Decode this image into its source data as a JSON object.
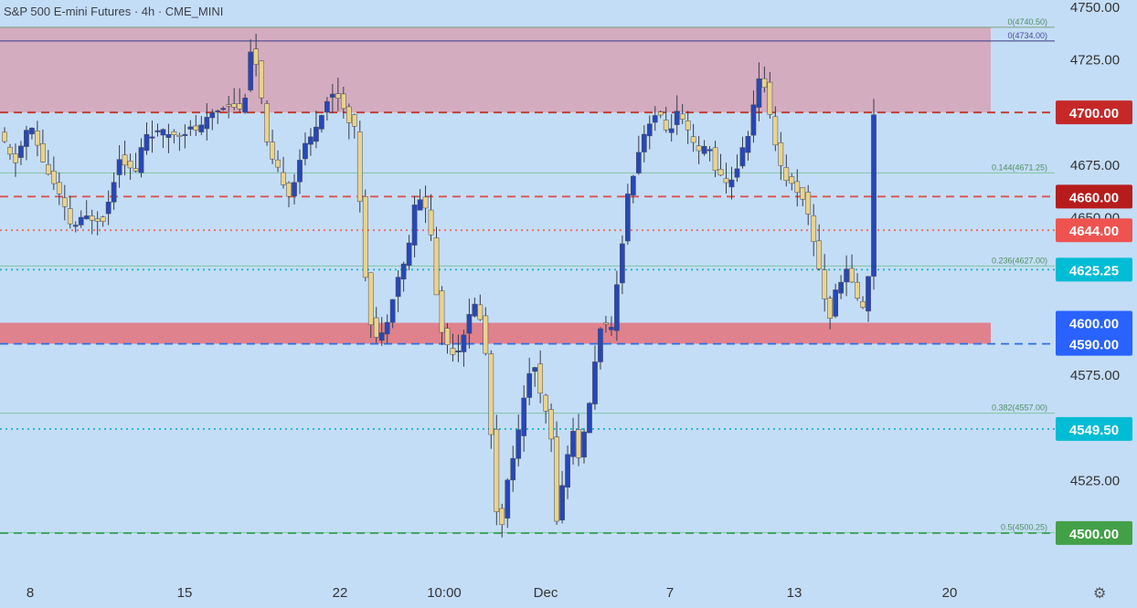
{
  "header": {
    "title": "S&P 500 E-mini Futures · 4h · CME_MINI"
  },
  "colors": {
    "background": "#c4ddf7",
    "bull_body": "#2747b8",
    "bear_body": "#e9d38c",
    "wick": "#383c49",
    "resistance_zone": "#d5a9bd",
    "support_zone": "#e07c88"
  },
  "chart_data": {
    "type": "candlestick",
    "title": "S&P 500 E-mini Futures",
    "interval": "4h",
    "exchange": "CME_MINI",
    "ylim": [
      4480,
      4750
    ],
    "y_ticks": [
      "4750.00",
      "4725.00",
      "4675.00",
      "4650.00",
      "4575.00",
      "4525.00"
    ],
    "x_ticks": [
      "8",
      "15",
      "22",
      "10:00",
      "Dec",
      "7",
      "13",
      "20"
    ],
    "grid": false,
    "zones": [
      {
        "from": 4700,
        "to": 4740.5,
        "color": "#d5a9bd"
      },
      {
        "from": 4590,
        "to": 4600,
        "color": "#e07c88"
      }
    ],
    "levels": [
      {
        "value": 4734,
        "label": "0(4734.00)",
        "color": "#3b3a86",
        "style": "solid"
      },
      {
        "value": 4740.5,
        "label": "0(4740.50)",
        "color": "#7aa27a",
        "style": "solid"
      },
      {
        "value": 4700,
        "price_label": "4700.00",
        "color": "#c0392b",
        "style": "dashed"
      },
      {
        "value": 4671.25,
        "label": "0.144(4671.25)",
        "color": "#7dc69f",
        "style": "solid"
      },
      {
        "value": 4660,
        "price_label": "4660.00",
        "color": "#d9534f",
        "style": "dashed"
      },
      {
        "value": 4644,
        "price_label": "4644.00",
        "color": "#ef6b5b",
        "style": "dotted"
      },
      {
        "value": 4627,
        "label": "0.236(4627.00)",
        "color": "#7dc69f",
        "style": "solid"
      },
      {
        "value": 4625.25,
        "price_label": "4625.25",
        "color": "#17b3c6",
        "style": "dotted"
      },
      {
        "value": 4600,
        "price_label": "4600.00",
        "color": "#2563eb",
        "style": "none"
      },
      {
        "value": 4590,
        "price_label": "4590.00",
        "color": "#2f6fe6",
        "style": "dashed"
      },
      {
        "value": 4557,
        "label": "0.382(4557.00)",
        "color": "#7dc69f",
        "style": "solid"
      },
      {
        "value": 4549.5,
        "price_label": "4549.50",
        "color": "#17b3c6",
        "style": "dotted"
      },
      {
        "value": 4500.25,
        "label": "0.5(4500.25)",
        "color": "#7dc69f",
        "style": "solid"
      },
      {
        "value": 4500,
        "price_label": "4500.00",
        "color": "#3aa35a",
        "style": "dashed"
      }
    ],
    "path": [
      [
        0,
        4690
      ],
      [
        0.06,
        4675
      ],
      [
        0.12,
        4695
      ],
      [
        0.18,
        4675
      ],
      [
        0.24,
        4660
      ],
      [
        0.29,
        4645
      ],
      [
        0.34,
        4650
      ],
      [
        0.42,
        4650
      ],
      [
        0.48,
        4680
      ],
      [
        0.54,
        4670
      ],
      [
        0.58,
        4690
      ],
      [
        0.64,
        4690
      ],
      [
        0.7,
        4690
      ],
      [
        0.76,
        4692
      ],
      [
        0.8,
        4692
      ],
      [
        0.85,
        4700
      ],
      [
        0.92,
        4705
      ],
      [
        0.97,
        4700
      ],
      [
        1.0,
        4730
      ],
      [
        1.03,
        4720
      ],
      [
        1.07,
        4680
      ],
      [
        1.12,
        4670
      ],
      [
        1.16,
        4660
      ],
      [
        1.2,
        4680
      ],
      [
        1.24,
        4688
      ],
      [
        1.3,
        4705
      ],
      [
        1.34,
        4710
      ],
      [
        1.38,
        4700
      ],
      [
        1.42,
        4690
      ],
      [
        1.45,
        4630
      ],
      [
        1.48,
        4600
      ],
      [
        1.51,
        4590
      ],
      [
        1.54,
        4600
      ],
      [
        1.58,
        4620
      ],
      [
        1.62,
        4630
      ],
      [
        1.66,
        4660
      ],
      [
        1.7,
        4655
      ],
      [
        1.72,
        4640
      ],
      [
        1.75,
        4600
      ],
      [
        1.78,
        4590
      ],
      [
        1.82,
        4585
      ],
      [
        1.86,
        4600
      ],
      [
        1.9,
        4610
      ],
      [
        1.93,
        4595
      ],
      [
        1.95,
        4560
      ],
      [
        1.98,
        4510
      ],
      [
        2.0,
        4505
      ],
      [
        2.03,
        4530
      ],
      [
        2.06,
        4545
      ],
      [
        2.08,
        4555
      ],
      [
        2.1,
        4575
      ],
      [
        2.13,
        4580
      ],
      [
        2.16,
        4560
      ],
      [
        2.19,
        4555
      ],
      [
        2.22,
        4505
      ],
      [
        2.25,
        4530
      ],
      [
        2.28,
        4550
      ],
      [
        2.31,
        4535
      ],
      [
        2.34,
        4555
      ],
      [
        2.37,
        4580
      ],
      [
        2.4,
        4605
      ],
      [
        2.43,
        4590
      ],
      [
        2.46,
        4620
      ],
      [
        2.5,
        4660
      ],
      [
        2.54,
        4680
      ],
      [
        2.58,
        4695
      ],
      [
        2.62,
        4700
      ],
      [
        2.66,
        4690
      ],
      [
        2.7,
        4700
      ],
      [
        2.74,
        4690
      ],
      [
        2.78,
        4680
      ],
      [
        2.82,
        4685
      ],
      [
        2.86,
        4670
      ],
      [
        2.9,
        4665
      ],
      [
        2.94,
        4675
      ],
      [
        2.98,
        4690
      ],
      [
        3.02,
        4715
      ],
      [
        3.05,
        4712
      ],
      [
        3.08,
        4690
      ],
      [
        3.12,
        4670
      ],
      [
        3.16,
        4665
      ],
      [
        3.2,
        4660
      ],
      [
        3.24,
        4640
      ],
      [
        3.28,
        4615
      ],
      [
        3.3,
        4600
      ],
      [
        3.34,
        4620
      ],
      [
        3.38,
        4625
      ],
      [
        3.42,
        4610
      ],
      [
        3.44,
        4605
      ],
      [
        3.46,
        4625
      ],
      [
        3.48,
        4700
      ]
    ]
  },
  "price_axis": {
    "labels": [
      "4750.00",
      "4725.00",
      "4675.00",
      "4650.00",
      "4575.00",
      "4525.00"
    ]
  },
  "price_badges": [
    {
      "text": "4700.00",
      "value": 4700,
      "color": "#c62828"
    },
    {
      "text": "4660.00",
      "value": 4660,
      "color": "#b71c1c"
    },
    {
      "text": "4644.00",
      "value": 4644,
      "color": "#ef5350"
    },
    {
      "text": "4625.25",
      "value": 4625.25,
      "color": "#00bcd4"
    },
    {
      "text": "4600.00",
      "value": 4600,
      "color": "#2962ff"
    },
    {
      "text": "4590.00",
      "value": 4590,
      "color": "#2962ff"
    },
    {
      "text": "4549.50",
      "value": 4549.5,
      "color": "#00bcd4"
    },
    {
      "text": "4500.00",
      "value": 4500,
      "color": "#43a047"
    }
  ],
  "settings_icon": "gear-icon"
}
